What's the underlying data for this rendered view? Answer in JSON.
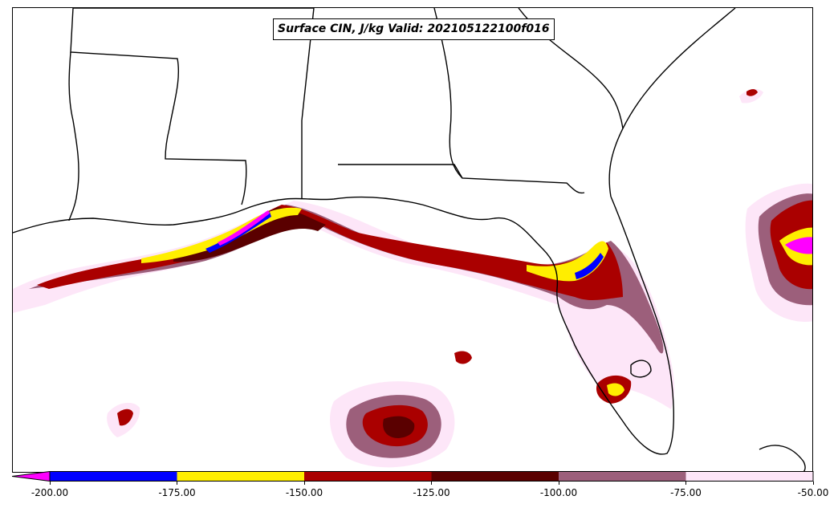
{
  "title": "Surface CIN, J/kg Valid: 202105122100f016",
  "colorbar": {
    "colors": [
      "#ff00ff",
      "#0000ff",
      "#ffee00",
      "#aa0000",
      "#5a0000",
      "#9c5f7b",
      "#fde6f8"
    ],
    "bounds": [
      -200,
      -175,
      -150,
      -125,
      -100,
      -75,
      -50
    ],
    "tick_labels": [
      "-200.00",
      "-175.00",
      "-150.00",
      "-125.00",
      "-100.00",
      "-75.00",
      "-50.00"
    ],
    "extend": "min"
  },
  "icons": {
    "map": "map-icon"
  }
}
